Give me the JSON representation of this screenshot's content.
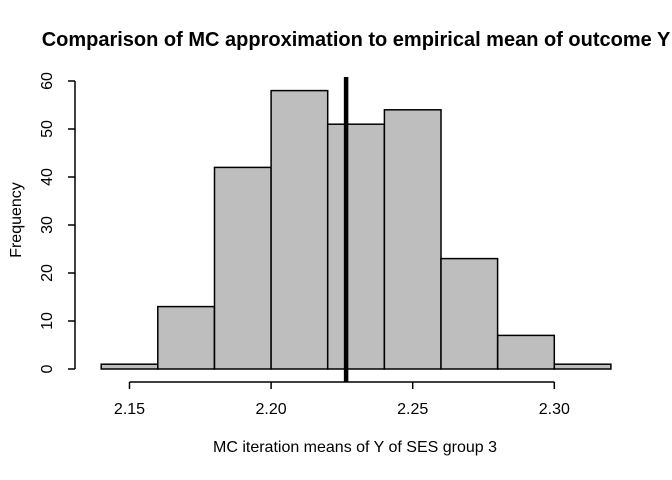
{
  "chart_data": {
    "type": "bar",
    "subtype": "histogram",
    "title": "Comparison of MC approximation to empirical mean of outcome Y",
    "xlabel": "MC iteration means of Y of SES group 3",
    "ylabel": "Frequency",
    "bin_edges": [
      2.14,
      2.16,
      2.18,
      2.2,
      2.22,
      2.24,
      2.26,
      2.28,
      2.3,
      2.32
    ],
    "frequencies": [
      1,
      13,
      42,
      58,
      51,
      54,
      23,
      7,
      1
    ],
    "x_ticks": [
      2.15,
      2.2,
      2.25,
      2.3
    ],
    "x_tick_labels": [
      "2.15",
      "2.20",
      "2.25",
      "2.30"
    ],
    "y_ticks": [
      0,
      10,
      20,
      30,
      40,
      50,
      60
    ],
    "y_tick_labels": [
      "0",
      "10",
      "20",
      "30",
      "40",
      "50",
      "60"
    ],
    "vline_x": 2.2265,
    "xlim": [
      2.133,
      2.327
    ],
    "ylim": [
      0,
      60
    ],
    "grid": "off",
    "legend": "none",
    "colors": {
      "bar_fill": "#BEBEBE",
      "bar_stroke": "#000000",
      "axis": "#000000",
      "text": "#000000",
      "vline": "#000000",
      "background": "#FFFFFF"
    }
  }
}
